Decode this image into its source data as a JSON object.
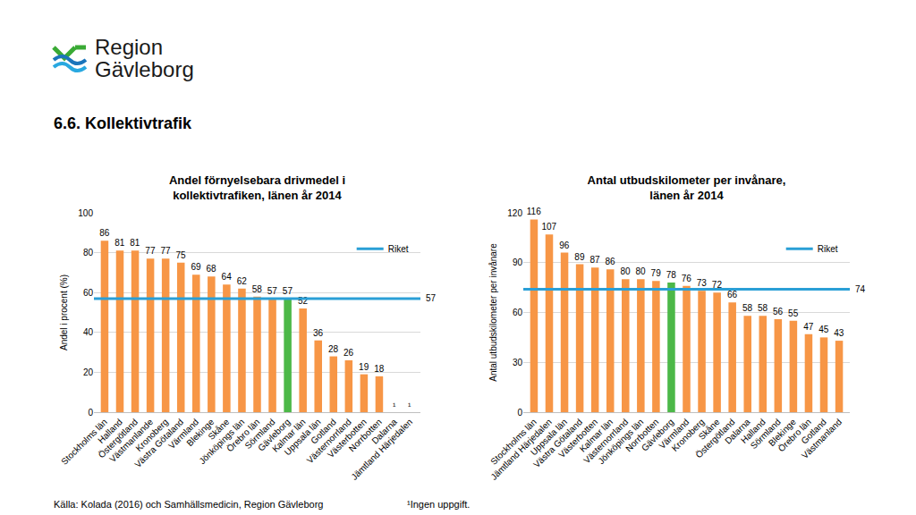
{
  "header": {
    "logo": [
      "Region",
      "Gävleborg"
    ],
    "heading": "6.6. Kollektivtrafik"
  },
  "footer": {
    "source": "Källa: Kolada (2016) och Samhällsmedicin, Region Gävleborg",
    "note": "¹Ingen uppgift."
  },
  "chart_data": [
    {
      "type": "bar",
      "title": "Andel förnyelsebara drivmedel i\nkollektivtrafiken, länen år 2014",
      "y_label": "Andel i procent (%)",
      "categories": [
        "Stockholms län",
        "Halland",
        "Östergötland",
        "Västmanlande",
        "Kronoberg",
        "Västra Götaland",
        "Värmland",
        "Blekinge",
        "Skåne",
        "Jönköpings län",
        "Örebro län",
        "Sörmland",
        "Gävleborg",
        "Kalmar län",
        "Uppsala län",
        "Gotland",
        "Västernorrland",
        "Västerbotten",
        "Norrbotten",
        "Dalarna",
        "Jämtland Härjedalen"
      ],
      "values": [
        86,
        81,
        81,
        77,
        77,
        75,
        69,
        68,
        64,
        62,
        58,
        57,
        57,
        52,
        36,
        28,
        26,
        19,
        18,
        null,
        null
      ],
      "value_labels": [
        "86",
        "81",
        "81",
        "77",
        "77",
        "75",
        "69",
        "68",
        "64",
        "62",
        "58",
        "57",
        "57",
        "52",
        "36",
        "28",
        "26",
        "19",
        "18",
        "¹",
        "¹"
      ],
      "colors": [
        "#f79646",
        "#f79646",
        "#f79646",
        "#f79646",
        "#f79646",
        "#f79646",
        "#f79646",
        "#f79646",
        "#f79646",
        "#f79646",
        "#f79646",
        "#f79646",
        "#4cb848",
        "#f79646",
        "#f79646",
        "#f79646",
        "#f79646",
        "#f79646",
        "#f79646",
        "#f79646",
        "#f79646"
      ],
      "ylim": [
        0,
        100
      ],
      "yticks": [
        0,
        20,
        40,
        60,
        80,
        100
      ],
      "grid": true,
      "data_labels": true,
      "legend": "right",
      "reference_line": {
        "name": "Riket",
        "value": 57,
        "color": "#2a9fd6"
      }
    },
    {
      "type": "bar",
      "title": "Antal utbudskilometer per invånare,\nlänen år 2014",
      "y_label": "Antal utbudskilometer per invånare",
      "categories": [
        "Stockholms län",
        "Jämtland Härjedalen",
        "Uppsala län",
        "Västra Götaland",
        "Västerbotten",
        "Kalmar län",
        "Västernorrland",
        "Jönköpings län",
        "Norrbotten",
        "Gävleborg",
        "Värmland",
        "Kronoberg",
        "Skåne",
        "Östergötland",
        "Dalarna",
        "Halland",
        "Sörmland",
        "Blekinge",
        "Örebro län",
        "Gotland",
        "Västmanland"
      ],
      "values": [
        116,
        107,
        96,
        89,
        87,
        86,
        80,
        80,
        79,
        78,
        76,
        73,
        72,
        66,
        58,
        58,
        56,
        55,
        47,
        45,
        43
      ],
      "colors": [
        "#f79646",
        "#f79646",
        "#f79646",
        "#f79646",
        "#f79646",
        "#f79646",
        "#f79646",
        "#f79646",
        "#f79646",
        "#4cb848",
        "#f79646",
        "#f79646",
        "#f79646",
        "#f79646",
        "#f79646",
        "#f79646",
        "#f79646",
        "#f79646",
        "#f79646",
        "#f79646",
        "#f79646"
      ],
      "ylim": [
        0,
        120
      ],
      "yticks": [
        0,
        30,
        60,
        90,
        120
      ],
      "grid": true,
      "data_labels": true,
      "legend": "right",
      "reference_line": {
        "name": "Riket",
        "value": 74,
        "color": "#2a9fd6"
      }
    }
  ]
}
